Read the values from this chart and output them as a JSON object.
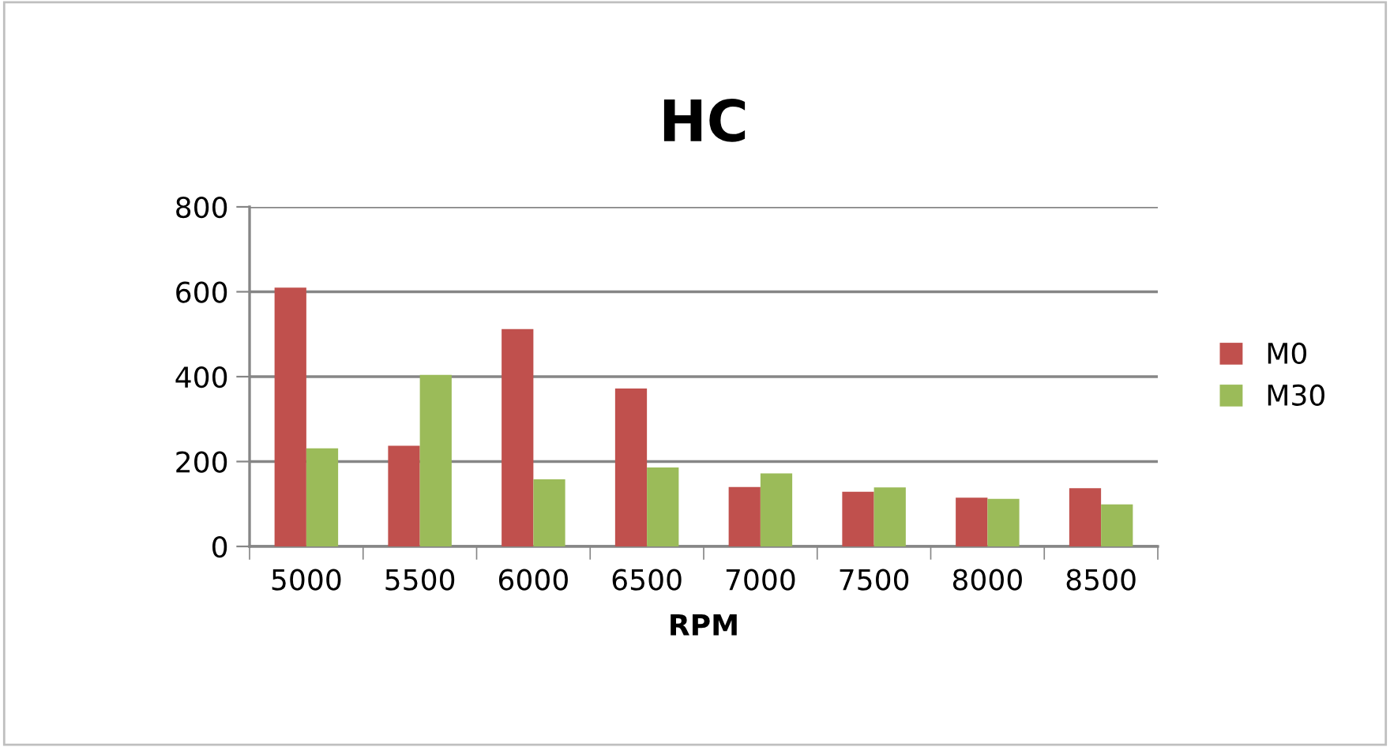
{
  "chart_data": {
    "type": "bar",
    "title": "HC",
    "xlabel": "RPM",
    "categories": [
      "5000",
      "5500",
      "6000",
      "6500",
      "7000",
      "7500",
      "8000",
      "8500"
    ],
    "series": [
      {
        "name": "M0",
        "color": "#c0504d",
        "values": [
          610,
          237,
          512,
          372,
          140,
          129,
          115,
          137
        ]
      },
      {
        "name": "M30",
        "color": "#9bbb59",
        "values": [
          231,
          404,
          158,
          186,
          172,
          139,
          112,
          99
        ]
      }
    ],
    "ylim": [
      0,
      800
    ],
    "yticks": [
      0,
      200,
      400,
      600,
      800
    ],
    "grid": "y",
    "legend": "right"
  }
}
